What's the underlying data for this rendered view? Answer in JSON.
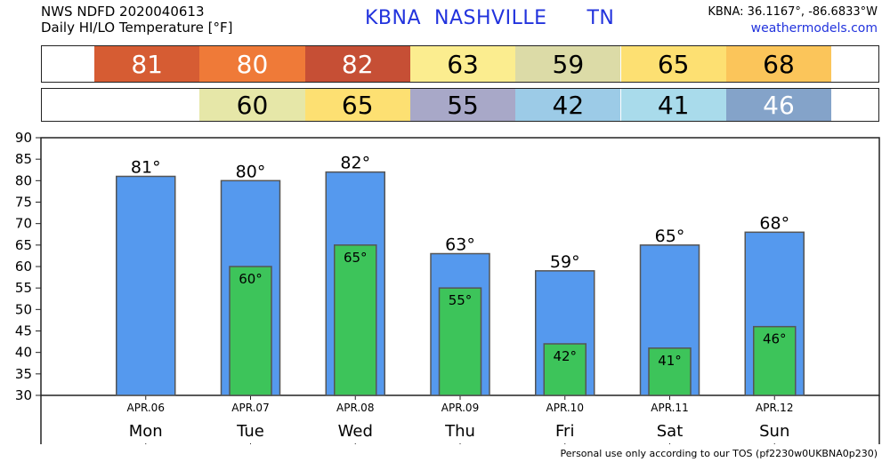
{
  "header": {
    "line1": "NWS NDFD 2020040613",
    "line2": "Daily HI/LO Temperature [°F]",
    "station_code": "KBNA",
    "city": "NASHVILLE",
    "state": "TN",
    "coords": "KBNA: 36.1167°, -86.6833°W",
    "site": "weathermodels.com"
  },
  "hi_strip": [
    {
      "value": "81",
      "color": "#d65c33",
      "text_color": "#ffffff"
    },
    {
      "value": "80",
      "color": "#ef7a38",
      "text_color": "#ffffff"
    },
    {
      "value": "82",
      "color": "#c64f35",
      "text_color": "#ffffff"
    },
    {
      "value": "63",
      "color": "#fbed8f",
      "text_color": "#000000"
    },
    {
      "value": "59",
      "color": "#dcdba7",
      "text_color": "#000000"
    },
    {
      "value": "65",
      "color": "#fde072",
      "text_color": "#000000"
    },
    {
      "value": "68",
      "color": "#fbc55a",
      "text_color": "#000000"
    }
  ],
  "lo_strip": [
    {
      "value": "60",
      "color": "#e6e7a8",
      "text_color": "#000000"
    },
    {
      "value": "65",
      "color": "#fde072",
      "text_color": "#000000"
    },
    {
      "value": "55",
      "color": "#a8a8c8",
      "text_color": "#000000"
    },
    {
      "value": "42",
      "color": "#9ccbe7",
      "text_color": "#000000"
    },
    {
      "value": "41",
      "color": "#a9dbeb",
      "text_color": "#000000"
    },
    {
      "value": "46",
      "color": "#84a3c9",
      "text_color": "#ffffff"
    }
  ],
  "chart_data": {
    "type": "bar",
    "categories": [
      "Mon",
      "Tue",
      "Wed",
      "Thu",
      "Fri",
      "Sat",
      "Sun"
    ],
    "dates": [
      "APR.06",
      "APR.07",
      "APR.08",
      "APR.09",
      "APR.10",
      "APR.11",
      "APR.12"
    ],
    "series": [
      {
        "values": [
          81,
          80,
          82,
          63,
          59,
          65,
          68
        ],
        "color": "#5599ee"
      },
      {
        "values": [
          null,
          60,
          65,
          55,
          42,
          41,
          46
        ],
        "color": "#3dc45a"
      }
    ],
    "degree_suffix": "°",
    "ylim": [
      30,
      90
    ],
    "yticks": [
      30,
      35,
      40,
      45,
      50,
      55,
      60,
      65,
      70,
      75,
      80,
      85,
      90
    ],
    "grid": false
  },
  "footer": "Personal use only according to our TOS (pf2230w0UKBNA0p230)"
}
